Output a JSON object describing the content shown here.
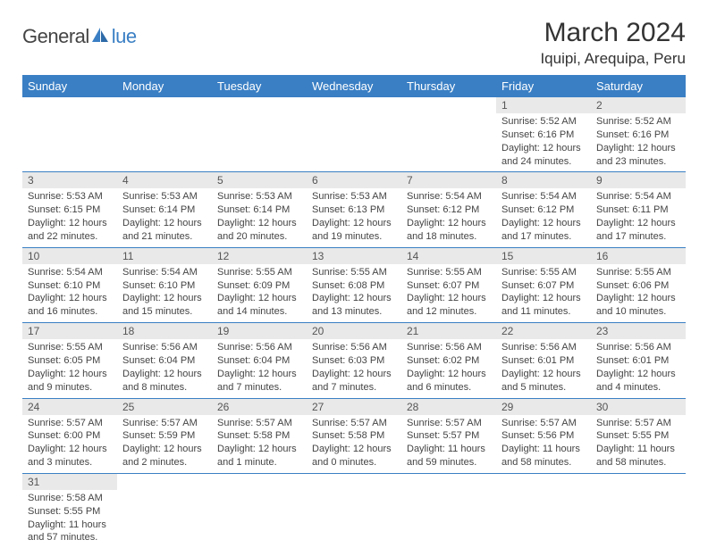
{
  "logo": {
    "text1": "General",
    "text2": "lue"
  },
  "title": "March 2024",
  "location": "Iquipi, Arequipa, Peru",
  "calendar": {
    "header_bg": "#3a7fc4",
    "header_fg": "#ffffff",
    "daynum_bg": "#e9e9e9",
    "row_border": "#3a7fc4",
    "columns": [
      "Sunday",
      "Monday",
      "Tuesday",
      "Wednesday",
      "Thursday",
      "Friday",
      "Saturday"
    ],
    "weeks": [
      [
        null,
        null,
        null,
        null,
        null,
        {
          "n": "1",
          "sr": "5:52 AM",
          "ss": "6:16 PM",
          "dl": "12 hours and 24 minutes."
        },
        {
          "n": "2",
          "sr": "5:52 AM",
          "ss": "6:16 PM",
          "dl": "12 hours and 23 minutes."
        }
      ],
      [
        {
          "n": "3",
          "sr": "5:53 AM",
          "ss": "6:15 PM",
          "dl": "12 hours and 22 minutes."
        },
        {
          "n": "4",
          "sr": "5:53 AM",
          "ss": "6:14 PM",
          "dl": "12 hours and 21 minutes."
        },
        {
          "n": "5",
          "sr": "5:53 AM",
          "ss": "6:14 PM",
          "dl": "12 hours and 20 minutes."
        },
        {
          "n": "6",
          "sr": "5:53 AM",
          "ss": "6:13 PM",
          "dl": "12 hours and 19 minutes."
        },
        {
          "n": "7",
          "sr": "5:54 AM",
          "ss": "6:12 PM",
          "dl": "12 hours and 18 minutes."
        },
        {
          "n": "8",
          "sr": "5:54 AM",
          "ss": "6:12 PM",
          "dl": "12 hours and 17 minutes."
        },
        {
          "n": "9",
          "sr": "5:54 AM",
          "ss": "6:11 PM",
          "dl": "12 hours and 17 minutes."
        }
      ],
      [
        {
          "n": "10",
          "sr": "5:54 AM",
          "ss": "6:10 PM",
          "dl": "12 hours and 16 minutes."
        },
        {
          "n": "11",
          "sr": "5:54 AM",
          "ss": "6:10 PM",
          "dl": "12 hours and 15 minutes."
        },
        {
          "n": "12",
          "sr": "5:55 AM",
          "ss": "6:09 PM",
          "dl": "12 hours and 14 minutes."
        },
        {
          "n": "13",
          "sr": "5:55 AM",
          "ss": "6:08 PM",
          "dl": "12 hours and 13 minutes."
        },
        {
          "n": "14",
          "sr": "5:55 AM",
          "ss": "6:07 PM",
          "dl": "12 hours and 12 minutes."
        },
        {
          "n": "15",
          "sr": "5:55 AM",
          "ss": "6:07 PM",
          "dl": "12 hours and 11 minutes."
        },
        {
          "n": "16",
          "sr": "5:55 AM",
          "ss": "6:06 PM",
          "dl": "12 hours and 10 minutes."
        }
      ],
      [
        {
          "n": "17",
          "sr": "5:55 AM",
          "ss": "6:05 PM",
          "dl": "12 hours and 9 minutes."
        },
        {
          "n": "18",
          "sr": "5:56 AM",
          "ss": "6:04 PM",
          "dl": "12 hours and 8 minutes."
        },
        {
          "n": "19",
          "sr": "5:56 AM",
          "ss": "6:04 PM",
          "dl": "12 hours and 7 minutes."
        },
        {
          "n": "20",
          "sr": "5:56 AM",
          "ss": "6:03 PM",
          "dl": "12 hours and 7 minutes."
        },
        {
          "n": "21",
          "sr": "5:56 AM",
          "ss": "6:02 PM",
          "dl": "12 hours and 6 minutes."
        },
        {
          "n": "22",
          "sr": "5:56 AM",
          "ss": "6:01 PM",
          "dl": "12 hours and 5 minutes."
        },
        {
          "n": "23",
          "sr": "5:56 AM",
          "ss": "6:01 PM",
          "dl": "12 hours and 4 minutes."
        }
      ],
      [
        {
          "n": "24",
          "sr": "5:57 AM",
          "ss": "6:00 PM",
          "dl": "12 hours and 3 minutes."
        },
        {
          "n": "25",
          "sr": "5:57 AM",
          "ss": "5:59 PM",
          "dl": "12 hours and 2 minutes."
        },
        {
          "n": "26",
          "sr": "5:57 AM",
          "ss": "5:58 PM",
          "dl": "12 hours and 1 minute."
        },
        {
          "n": "27",
          "sr": "5:57 AM",
          "ss": "5:58 PM",
          "dl": "12 hours and 0 minutes."
        },
        {
          "n": "28",
          "sr": "5:57 AM",
          "ss": "5:57 PM",
          "dl": "11 hours and 59 minutes."
        },
        {
          "n": "29",
          "sr": "5:57 AM",
          "ss": "5:56 PM",
          "dl": "11 hours and 58 minutes."
        },
        {
          "n": "30",
          "sr": "5:57 AM",
          "ss": "5:55 PM",
          "dl": "11 hours and 58 minutes."
        }
      ],
      [
        {
          "n": "31",
          "sr": "5:58 AM",
          "ss": "5:55 PM",
          "dl": "11 hours and 57 minutes."
        },
        null,
        null,
        null,
        null,
        null,
        null
      ]
    ]
  }
}
